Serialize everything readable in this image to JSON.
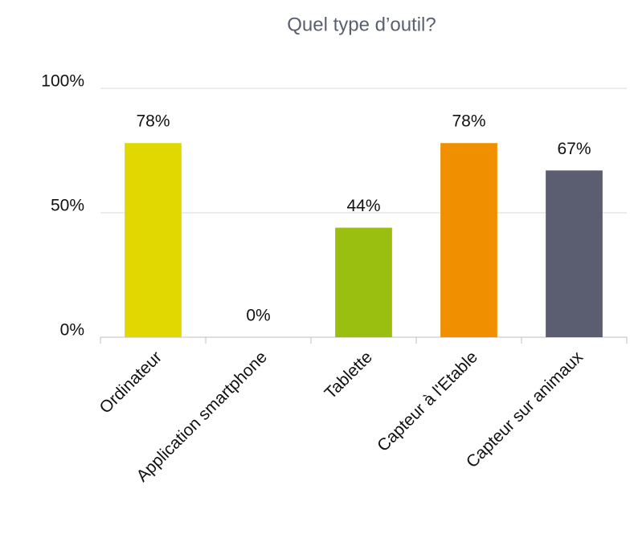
{
  "chart_data": {
    "type": "bar",
    "title": "Quel type d’outil?",
    "categories": [
      "Ordinateur",
      "Application smartphone",
      "Tablette",
      "Capteur à l'Etable",
      "Capteur sur animaux"
    ],
    "values": [
      78,
      0,
      44,
      78,
      67
    ],
    "value_labels": [
      "78%",
      "0%",
      "44%",
      "78%",
      "67%"
    ],
    "colors": [
      "#e0d800",
      "#cccccc",
      "#9abf10",
      "#f09000",
      "#5b5e70"
    ],
    "ylim": [
      0,
      100
    ],
    "yticks": [
      {
        "value": 0,
        "label": "0%"
      },
      {
        "value": 50,
        "label": "50%"
      },
      {
        "value": 100,
        "label": "100%"
      }
    ],
    "grid": true
  }
}
